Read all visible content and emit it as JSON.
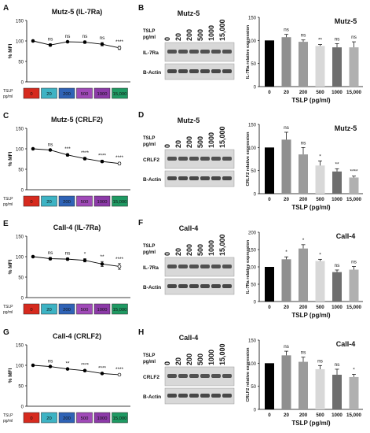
{
  "figure": {
    "line_panel_common": {
      "ylabel": "% MFI",
      "xlabel_top": "TSLP",
      "xlabel_bottom": "pg/ml",
      "box_labels": [
        "0",
        "20",
        "200",
        "500",
        "1000",
        "15,000"
      ],
      "box_colors": [
        "#d62a1e",
        "#3db3c4",
        "#2f63b6",
        "#a04ab8",
        "#8c3aa8",
        "#1f9a63"
      ]
    },
    "blot_common": {
      "tslp_label": "TSLP",
      "unit_label": "pg/ml",
      "lanes": [
        "0",
        "20",
        "200",
        "500",
        "1000",
        "15,000"
      ],
      "actin_label": "B-Actin"
    },
    "bar_common": {
      "xlabel": "TSLP (pg/ml)",
      "categories": [
        "0",
        "20",
        "200",
        "500",
        "1000",
        "15,000"
      ],
      "colors": [
        "#000000",
        "#8f8f8f",
        "#9b9b9b",
        "#d8d8d8",
        "#6e6e6e",
        "#b0b0b0"
      ]
    },
    "line_panels": [
      {
        "letter": "A",
        "title": "Mutz-5 (IL-7Ra)"
      },
      {
        "letter": "C",
        "title": "Mutz-5 (CRLF2)"
      },
      {
        "letter": "E",
        "title": "Call-4 (IL-7Ra)"
      },
      {
        "letter": "G",
        "title": "Call-4 (CRLF2)"
      }
    ],
    "blot_panels": [
      {
        "letter": "B",
        "title": "Mutz-5",
        "protein": "IL-7Ra"
      },
      {
        "letter": "D",
        "title": "Mutz-5",
        "protein": "CRLF2"
      },
      {
        "letter": "F",
        "title": "Call-4",
        "protein": "IL-7Ra"
      },
      {
        "letter": "H",
        "title": "Call-4",
        "protein": "CRLF2"
      }
    ],
    "bar_panels": [
      {
        "title": "Mutz-5",
        "ylabel": "IL-7Ra relative expression"
      },
      {
        "title": "Mutz-5",
        "ylabel": "CRLF2 relative expression"
      },
      {
        "title": "Call-4",
        "ylabel": "IL-7Ra relative expression"
      },
      {
        "title": "Call-4",
        "ylabel": "CRLF2 relative expression"
      }
    ]
  },
  "chart_data": [
    {
      "type": "line",
      "panel": "A",
      "title": "Mutz-5 (IL-7Ra)",
      "ylabel": "% MFI",
      "ylim": [
        0,
        150
      ],
      "yticks": [
        0,
        50,
        100,
        150
      ],
      "x": [
        "0",
        "20",
        "200",
        "500",
        "1000",
        "15,000"
      ],
      "values": [
        100,
        90,
        98,
        97,
        92,
        83
      ],
      "errors": [
        2,
        3,
        2,
        3,
        4,
        4
      ],
      "annotations": [
        "",
        "ns",
        "ns",
        "ns",
        "ns",
        "****"
      ]
    },
    {
      "type": "bar",
      "panel": "B",
      "title": "Mutz-5",
      "ylabel": "IL-7Ra relative expression",
      "xlabel": "TSLP (pg/ml)",
      "ylim": [
        0,
        150
      ],
      "yticks": [
        0,
        50,
        100,
        150
      ],
      "categories": [
        "0",
        "20",
        "200",
        "500",
        "1000",
        "15,000"
      ],
      "values": [
        100,
        107,
        97,
        88,
        85,
        85
      ],
      "errors": [
        0,
        6,
        4,
        3,
        8,
        12
      ],
      "annotations": [
        "",
        "ns",
        "ns",
        "**",
        "ns",
        "ns"
      ]
    },
    {
      "type": "line",
      "panel": "C",
      "title": "Mutz-5 (CRLF2)",
      "ylabel": "% MFI",
      "ylim": [
        0,
        150
      ],
      "yticks": [
        0,
        50,
        100,
        150
      ],
      "x": [
        "0",
        "20",
        "200",
        "500",
        "1000",
        "15,000"
      ],
      "values": [
        100,
        97,
        85,
        76,
        69,
        64
      ],
      "errors": [
        1,
        2,
        3,
        3,
        3,
        3
      ],
      "annotations": [
        "",
        "ns",
        "***",
        "****",
        "****",
        "****"
      ]
    },
    {
      "type": "bar",
      "panel": "D",
      "title": "Mutz-5",
      "ylabel": "CRLF2 relative expression",
      "xlabel": "TSLP (pg/ml)",
      "ylim": [
        0,
        150
      ],
      "yticks": [
        0,
        50,
        100,
        150
      ],
      "categories": [
        "0",
        "20",
        "200",
        "500",
        "1000",
        "15,000"
      ],
      "values": [
        100,
        117,
        85,
        61,
        48,
        35
      ],
      "errors": [
        0,
        16,
        15,
        10,
        6,
        3
      ],
      "annotations": [
        "",
        "ns",
        "ns",
        "*",
        "**",
        "****"
      ]
    },
    {
      "type": "line",
      "panel": "E",
      "title": "Call-4 (IL-7Ra)",
      "ylabel": "% MFI",
      "ylim": [
        0,
        150
      ],
      "yticks": [
        0,
        50,
        100,
        150
      ],
      "x": [
        "0",
        "20",
        "200",
        "500",
        "1000",
        "15,000"
      ],
      "values": [
        100,
        95,
        94,
        91,
        82,
        76
      ],
      "errors": [
        2,
        3,
        3,
        4,
        6,
        7
      ],
      "annotations": [
        "",
        "ns",
        "ns",
        "*",
        "**",
        "****"
      ]
    },
    {
      "type": "bar",
      "panel": "F",
      "title": "Call-4",
      "ylabel": "IL-7Ra relative expression",
      "xlabel": "TSLP (pg/ml)",
      "ylim": [
        0,
        200
      ],
      "yticks": [
        0,
        50,
        100,
        150,
        200
      ],
      "categories": [
        "0",
        "20",
        "200",
        "500",
        "1000",
        "15,000"
      ],
      "values": [
        100,
        122,
        153,
        117,
        85,
        92
      ],
      "errors": [
        0,
        7,
        11,
        5,
        6,
        9
      ],
      "annotations": [
        "",
        "*",
        "*",
        "*",
        "ns",
        "ns"
      ]
    },
    {
      "type": "line",
      "panel": "G",
      "title": "Call-4 (CRLF2)",
      "ylabel": "% MFI",
      "ylim": [
        0,
        150
      ],
      "yticks": [
        0,
        50,
        100,
        150
      ],
      "x": [
        "0",
        "20",
        "200",
        "500",
        "1000",
        "15,000"
      ],
      "values": [
        100,
        97,
        91,
        87,
        80,
        77
      ],
      "errors": [
        1,
        2,
        2,
        2,
        2,
        2
      ],
      "annotations": [
        "",
        "ns",
        "**",
        "****",
        "****",
        "****"
      ]
    },
    {
      "type": "bar",
      "panel": "H",
      "title": "Call-4",
      "ylabel": "CRLF2 relative expression",
      "xlabel": "TSLP (pg/ml)",
      "ylim": [
        0,
        150
      ],
      "yticks": [
        0,
        50,
        100,
        150
      ],
      "categories": [
        "0",
        "20",
        "200",
        "500",
        "1000",
        "15,000"
      ],
      "values": [
        100,
        117,
        103,
        87,
        75,
        70
      ],
      "errors": [
        0,
        9,
        10,
        8,
        12,
        6
      ],
      "annotations": [
        "",
        "ns",
        "ns",
        "ns",
        "ns",
        "*"
      ]
    }
  ]
}
